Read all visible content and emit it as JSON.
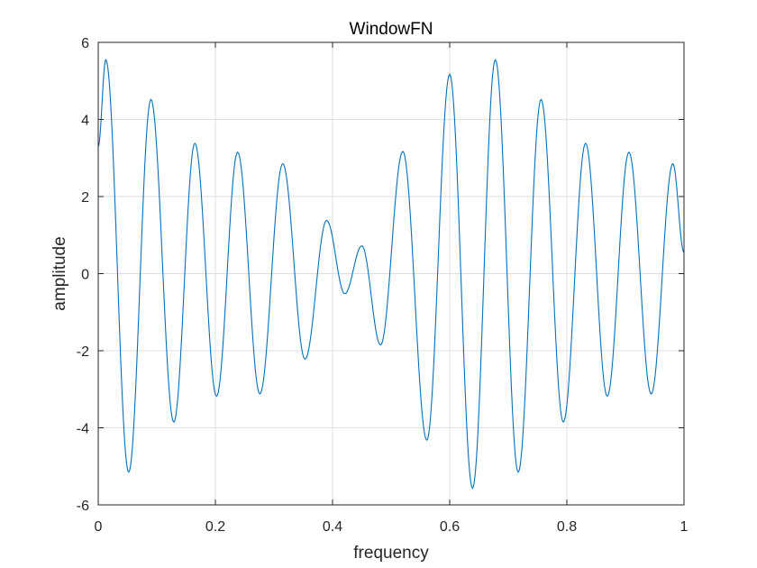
{
  "chart_data": {
    "type": "line",
    "title": "WindowFN",
    "xlabel": "frequency",
    "ylabel": "amplitude",
    "xlim": [
      0,
      1
    ],
    "ylim": [
      -6,
      6
    ],
    "xticks": [
      0,
      0.2,
      0.4,
      0.6,
      0.8,
      1
    ],
    "xtick_labels": [
      "0",
      "0.2",
      "0.4",
      "0.6",
      "0.8",
      "1"
    ],
    "yticks": [
      -6,
      -4,
      -2,
      0,
      2,
      4,
      6
    ],
    "ytick_labels": [
      "-6",
      "-4",
      "-2",
      "0",
      "2",
      "4",
      "6"
    ],
    "grid": true,
    "line_color": "#0072BD",
    "series": [
      {
        "extrema": [
          {
            "x": 0.0,
            "y": 3.3
          },
          {
            "x": 0.013,
            "y": 5.55
          },
          {
            "x": 0.052,
            "y": -5.15
          },
          {
            "x": 0.09,
            "y": 4.52
          },
          {
            "x": 0.129,
            "y": -3.85
          },
          {
            "x": 0.165,
            "y": 3.38
          },
          {
            "x": 0.202,
            "y": -3.18
          },
          {
            "x": 0.238,
            "y": 3.15
          },
          {
            "x": 0.276,
            "y": -3.12
          },
          {
            "x": 0.315,
            "y": 2.85
          },
          {
            "x": 0.353,
            "y": -2.22
          },
          {
            "x": 0.39,
            "y": 1.38
          },
          {
            "x": 0.421,
            "y": -0.52
          },
          {
            "x": 0.45,
            "y": 0.72
          },
          {
            "x": 0.482,
            "y": -1.85
          },
          {
            "x": 0.52,
            "y": 3.17
          },
          {
            "x": 0.561,
            "y": -4.32
          },
          {
            "x": 0.6,
            "y": 5.17
          },
          {
            "x": 0.639,
            "y": -5.57
          },
          {
            "x": 0.678,
            "y": 5.55
          },
          {
            "x": 0.717,
            "y": -5.15
          },
          {
            "x": 0.756,
            "y": 4.52
          },
          {
            "x": 0.794,
            "y": -3.85
          },
          {
            "x": 0.832,
            "y": 3.38
          },
          {
            "x": 0.869,
            "y": -3.18
          },
          {
            "x": 0.906,
            "y": 3.15
          },
          {
            "x": 0.944,
            "y": -3.12
          },
          {
            "x": 0.981,
            "y": 2.85
          },
          {
            "x": 1.0,
            "y": 0.55
          }
        ]
      }
    ]
  }
}
